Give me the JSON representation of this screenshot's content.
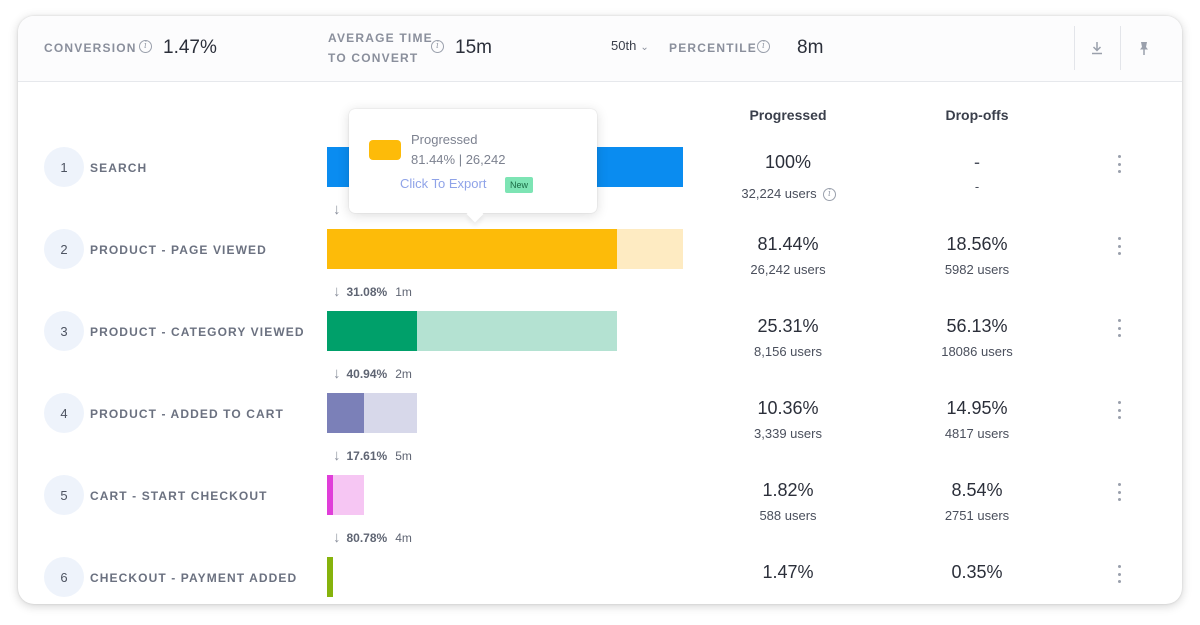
{
  "header": {
    "conversion_label": "CONVERSION",
    "conversion_value": "1.47%",
    "avg_time_label_line1": "AVERAGE TIME",
    "avg_time_label_line2": "TO CONVERT",
    "avg_time_value": "15m",
    "percentile_select": "50th",
    "percentile_label": "PERCENTILE",
    "percentile_value": "8m",
    "download_icon": "download-icon",
    "pin_icon": "pin-icon"
  },
  "columns": {
    "progressed": "Progressed",
    "dropoffs": "Drop-offs"
  },
  "colors": {
    "blue": "#0a8cf0",
    "amber": "#fdbb09",
    "amber_light": "#feebc2",
    "green": "#00a06a",
    "green_light": "#b4e2d2",
    "purple": "#7b80b8",
    "purple_light": "#d7d8ea",
    "pink": "#e03ed9",
    "pink_light": "#f6c6f3",
    "olive": "#86b30c"
  },
  "steps": [
    {
      "num": "1",
      "label": "SEARCH",
      "progressed_pct": "100%",
      "progressed_users": "32,224 users",
      "drop_pct": "-",
      "drop_users": "-",
      "fill_fraction": 1.0,
      "total_fraction": 1.0
    },
    {
      "num": "2",
      "label": "PRODUCT - PAGE VIEWED",
      "progressed_pct": "81.44%",
      "progressed_users": "26,242 users",
      "drop_pct": "18.56%",
      "drop_users": "5982 users",
      "fill_fraction": 0.8144,
      "total_fraction": 1.0
    },
    {
      "num": "3",
      "label": "PRODUCT - CATEGORY VIEWED",
      "progressed_pct": "25.31%",
      "progressed_users": "8,156 users",
      "drop_pct": "56.13%",
      "drop_users": "18086 users",
      "fill_fraction": 0.2531,
      "total_fraction": 0.8144
    },
    {
      "num": "4",
      "label": "PRODUCT - ADDED TO CART",
      "progressed_pct": "10.36%",
      "progressed_users": "3,339 users",
      "drop_pct": "14.95%",
      "drop_users": "4817 users",
      "fill_fraction": 0.1036,
      "total_fraction": 0.2531
    },
    {
      "num": "5",
      "label": "CART - START CHECKOUT",
      "progressed_pct": "1.82%",
      "progressed_users": "588 users",
      "drop_pct": "8.54%",
      "drop_users": "2751 users",
      "fill_fraction": 0.0182,
      "total_fraction": 0.1036
    },
    {
      "num": "6",
      "label": "CHECKOUT - PAYMENT ADDED",
      "progressed_pct": "1.47%",
      "progressed_users": "",
      "drop_pct": "0.35%",
      "drop_users": "",
      "fill_fraction": 0.0147,
      "total_fraction": 0.0182
    }
  ],
  "conversions": [
    {
      "pct": "",
      "time": ""
    },
    {
      "pct": "31.08%",
      "time": "1m"
    },
    {
      "pct": "40.94%",
      "time": "2m"
    },
    {
      "pct": "17.61%",
      "time": "5m"
    },
    {
      "pct": "80.78%",
      "time": "4m"
    }
  ],
  "tooltip": {
    "title": "Progressed",
    "value": "81.44% | 26,242",
    "export": "Click To Export",
    "badge": "New"
  }
}
